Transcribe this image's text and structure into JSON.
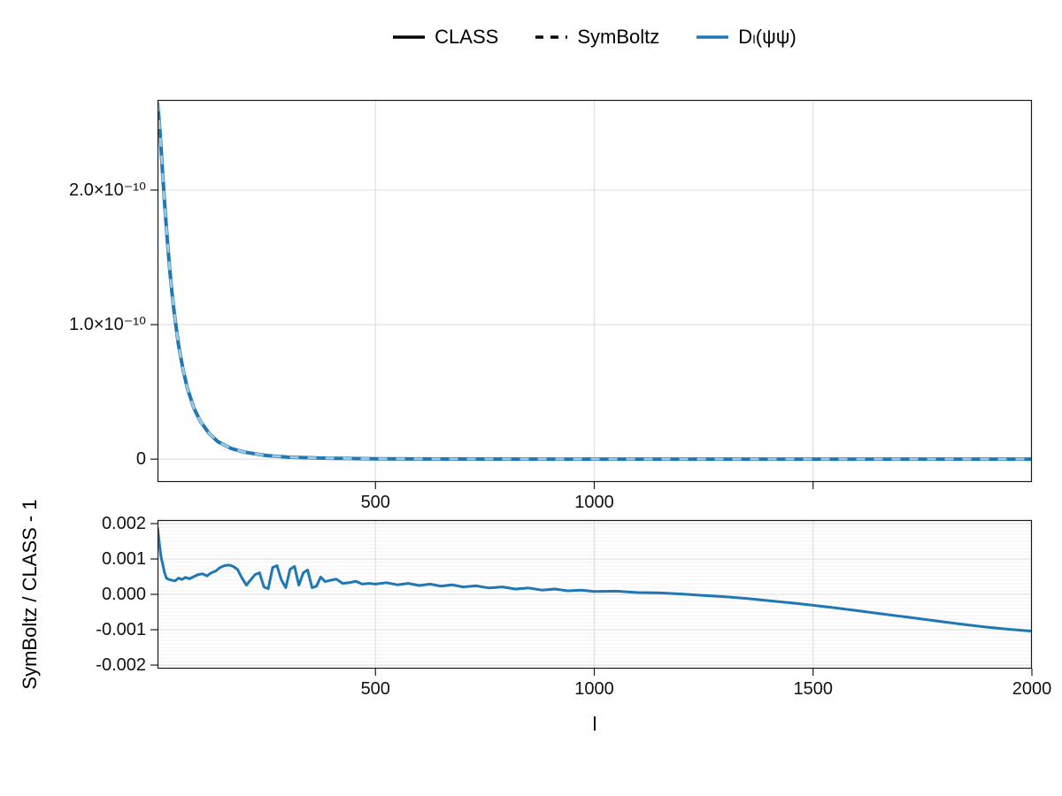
{
  "figure": {
    "xlabel": "l",
    "background": "#ffffff",
    "legend": {
      "items": [
        {
          "id": "class",
          "label": "CLASS",
          "color": "#000000",
          "dash": false
        },
        {
          "id": "symboltz",
          "label": "SymBoltz",
          "color": "#000000",
          "dash": true
        },
        {
          "id": "dl-psi-psi",
          "label": "Dₗ(ψψ)",
          "color": "#1f77b4",
          "dash": false
        }
      ]
    }
  },
  "chart_data": [
    {
      "id": "spectrum",
      "type": "line",
      "title": "",
      "xlabel": "",
      "ylabel": "",
      "xlim": [
        2,
        2000
      ],
      "ylim": [
        -1.7e-11,
        2.67e-10
      ],
      "xticks": [
        500,
        1000,
        1500
      ],
      "xticklabels": [
        "500",
        "1000",
        ""
      ],
      "yticks": [
        0,
        1e-10,
        2e-10
      ],
      "yticklabels": [
        "0",
        "1.0×10⁻¹⁰",
        "2.0×10⁻¹⁰"
      ],
      "grid": {
        "major": true,
        "minor_y_step": null
      },
      "x": [
        2,
        4,
        6,
        8,
        10,
        13,
        16,
        20,
        25,
        30,
        35,
        40,
        50,
        60,
        70,
        85,
        100,
        120,
        140,
        170,
        200,
        250,
        300,
        400,
        500,
        700,
        1000,
        1400,
        2000
      ],
      "series": [
        {
          "name": "CLASS",
          "color": "#1f77b4",
          "dash": false,
          "width": 4,
          "y": [
            2.65e-10,
            2.58e-10,
            2.5e-10,
            2.41e-10,
            2.31e-10,
            2.16e-10,
            2.01e-10,
            1.82e-10,
            1.6e-10,
            1.41e-10,
            1.24e-10,
            1.09e-10,
            8.5e-11,
            6.7e-11,
            5.3e-11,
            3.8e-11,
            2.8e-11,
            1.9e-11,
            1.3e-11,
            8e-12,
            5.2e-12,
            2.7e-12,
            1.5e-12,
            6e-13,
            3e-13,
            1.2e-13,
            5e-14,
            2e-14,
            1e-14
          ]
        },
        {
          "name": "SymBoltz",
          "color": "#9ecae1",
          "dash": true,
          "width": 2.8,
          "y": [
            2.65e-10,
            2.58e-10,
            2.5e-10,
            2.41e-10,
            2.31e-10,
            2.16e-10,
            2.01e-10,
            1.82e-10,
            1.6e-10,
            1.41e-10,
            1.24e-10,
            1.09e-10,
            8.5e-11,
            6.7e-11,
            5.3e-11,
            3.8e-11,
            2.8e-11,
            1.9e-11,
            1.3e-11,
            8e-12,
            5.2e-12,
            2.7e-12,
            1.5e-12,
            6e-13,
            3e-13,
            1.2e-13,
            5e-14,
            2e-14,
            1e-14
          ]
        }
      ]
    },
    {
      "id": "relative-difference",
      "type": "line",
      "title": "",
      "xlabel": "l",
      "ylabel": "SymBoltz / CLASS - 1",
      "xlim": [
        2,
        2000
      ],
      "ylim": [
        -0.0021,
        0.0021
      ],
      "xticks": [
        500,
        1000,
        1500,
        2000
      ],
      "xticklabels": [
        "500",
        "1000",
        "1500",
        "2000"
      ],
      "yticks": [
        -0.002,
        -0.001,
        0,
        0.001,
        0.002
      ],
      "yticklabels": [
        "-0.002",
        "-0.001",
        "0.000",
        "0.001",
        "0.002"
      ],
      "grid": {
        "major": true,
        "minor_y_step": 0.0001
      },
      "x": [
        2,
        6,
        10,
        14,
        18,
        22,
        28,
        35,
        42,
        50,
        58,
        66,
        75,
        85,
        95,
        105,
        115,
        125,
        135,
        145,
        155,
        165,
        175,
        185,
        195,
        205,
        215,
        225,
        235,
        245,
        255,
        265,
        275,
        285,
        295,
        305,
        315,
        325,
        335,
        345,
        355,
        365,
        375,
        385,
        395,
        410,
        425,
        440,
        455,
        470,
        485,
        500,
        525,
        550,
        575,
        600,
        625,
        650,
        675,
        700,
        730,
        760,
        790,
        820,
        850,
        880,
        910,
        940,
        970,
        1000,
        1050,
        1100,
        1150,
        1200,
        1250,
        1300,
        1350,
        1400,
        1450,
        1500,
        1550,
        1600,
        1650,
        1700,
        1750,
        1800,
        1850,
        1900,
        1950,
        2000
      ],
      "series": [
        {
          "name": "SymBoltz / CLASS - 1",
          "color": "#1f77b4",
          "dash": false,
          "width": 3,
          "y": [
            0.0019,
            0.00145,
            0.00105,
            0.00085,
            0.00062,
            0.00046,
            0.00042,
            0.0004,
            0.00038,
            0.00046,
            0.00042,
            0.00048,
            0.00044,
            0.0005,
            0.00056,
            0.00058,
            0.00052,
            0.00061,
            0.00066,
            0.00076,
            0.00081,
            0.00083,
            0.00079,
            0.0007,
            0.00046,
            0.00026,
            0.00041,
            0.00056,
            0.00061,
            0.00021,
            0.00016,
            0.00076,
            0.00081,
            0.00041,
            0.00019,
            0.00071,
            0.00079,
            0.00026,
            0.00061,
            0.00069,
            0.00019,
            0.00023,
            0.00049,
            0.00036,
            0.00039,
            0.00043,
            0.00031,
            0.00033,
            0.00037,
            0.00029,
            0.00031,
            0.00029,
            0.00033,
            0.00027,
            0.00031,
            0.00025,
            0.00029,
            0.00023,
            0.00027,
            0.00021,
            0.00024,
            0.00018,
            0.00021,
            0.00015,
            0.00018,
            0.00012,
            0.00015,
            0.0001,
            0.00012,
            8e-05,
            9e-05,
            5e-05,
            4e-05,
            1e-05,
            -3e-05,
            -7e-05,
            -0.00012,
            -0.00018,
            -0.00024,
            -0.00031,
            -0.00038,
            -0.00046,
            -0.00054,
            -0.00062,
            -0.0007,
            -0.00078,
            -0.00086,
            -0.00093,
            -0.00099,
            -0.00104
          ]
        }
      ]
    }
  ]
}
